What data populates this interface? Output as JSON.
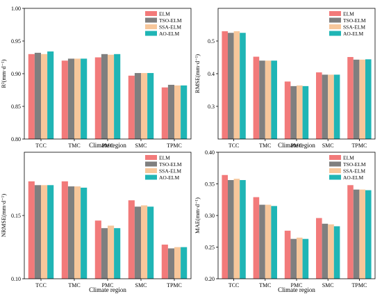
{
  "palette": [
    "#f27a7a",
    "#7f7f7f",
    "#f7c79b",
    "#1fb5b5"
  ],
  "chart_data": [
    {
      "type": "bar",
      "panel": "top-left",
      "categories": [
        "TCC",
        "TMC",
        "PMC",
        "SMC",
        "TPMC"
      ],
      "series": [
        {
          "name": "ELM",
          "values": [
            0.93,
            0.92,
            0.925,
            0.897,
            0.879
          ]
        },
        {
          "name": "TSO-ELM",
          "values": [
            0.932,
            0.923,
            0.93,
            0.901,
            0.883
          ]
        },
        {
          "name": "SSA-ELM",
          "values": [
            0.93,
            0.923,
            0.929,
            0.901,
            0.882
          ]
        },
        {
          "name": "AO-ELM",
          "values": [
            0.934,
            0.923,
            0.93,
            0.901,
            0.882
          ]
        }
      ],
      "ylabel": "R²(mm·d⁻¹)",
      "xlabel": "",
      "ylim": [
        0.8,
        1.0
      ],
      "yticks": [
        "0.80",
        "0.85",
        "0.90",
        "0.95",
        "1.00"
      ],
      "legend": "top-right"
    },
    {
      "type": "bar",
      "panel": "top-right",
      "categories": [
        "TCC",
        "TMC",
        "PMC",
        "SMC",
        "TPMC"
      ],
      "series": [
        {
          "name": "ELM",
          "values": [
            0.53,
            0.452,
            0.376,
            0.404,
            0.451
          ]
        },
        {
          "name": "TSO-ELM",
          "values": [
            0.525,
            0.44,
            0.362,
            0.397,
            0.443
          ]
        },
        {
          "name": "SSA-ELM",
          "values": [
            0.53,
            0.44,
            0.364,
            0.397,
            0.443
          ]
        },
        {
          "name": "AO-ELM",
          "values": [
            0.525,
            0.44,
            0.362,
            0.397,
            0.444
          ]
        }
      ],
      "ylabel": "RMSE(mm·d⁻¹)",
      "xlabel": "",
      "ylim": [
        0.2,
        0.6
      ],
      "yticks": [
        "0.3",
        "0.4",
        "0.5"
      ],
      "legend": "top-right"
    },
    {
      "type": "bar",
      "panel": "bottom-left",
      "categories": [
        "TCC",
        "TMC",
        "PMC",
        "SMC",
        "TPMC"
      ],
      "series": [
        {
          "name": "ELM",
          "values": [
            0.177,
            0.177,
            0.146,
            0.162,
            0.127
          ]
        },
        {
          "name": "TSO-ELM",
          "values": [
            0.174,
            0.173,
            0.14,
            0.157,
            0.124
          ]
        },
        {
          "name": "SSA-ELM",
          "values": [
            0.174,
            0.173,
            0.142,
            0.158,
            0.125
          ]
        },
        {
          "name": "AO-ELM",
          "values": [
            0.174,
            0.172,
            0.14,
            0.157,
            0.125
          ]
        }
      ],
      "ylabel": "NRMSE(mm·d⁻¹)",
      "xlabel": "Climate region",
      "ylim": [
        0.1,
        0.2
      ],
      "yticks": [
        "0.10",
        "0.15"
      ],
      "legend": "top-right"
    },
    {
      "type": "bar",
      "panel": "bottom-right",
      "categories": [
        "TCC",
        "TMC",
        "PMC",
        "SMC",
        "TPMC"
      ],
      "series": [
        {
          "name": "ELM",
          "values": [
            0.364,
            0.329,
            0.276,
            0.296,
            0.348
          ]
        },
        {
          "name": "TSO-ELM",
          "values": [
            0.356,
            0.317,
            0.263,
            0.287,
            0.341
          ]
        },
        {
          "name": "SSA-ELM",
          "values": [
            0.358,
            0.317,
            0.265,
            0.286,
            0.341
          ]
        },
        {
          "name": "AO-ELM",
          "values": [
            0.356,
            0.315,
            0.263,
            0.283,
            0.34
          ]
        }
      ],
      "ylabel": "MAE(mm·d⁻¹)",
      "xlabel": "Climate region",
      "ylim": [
        0.2,
        0.4
      ],
      "yticks": [
        "0.20",
        "0.25",
        "0.30",
        "0.35",
        "0.40"
      ],
      "legend": "top-right"
    }
  ],
  "shared_xlabel": "Climate region"
}
